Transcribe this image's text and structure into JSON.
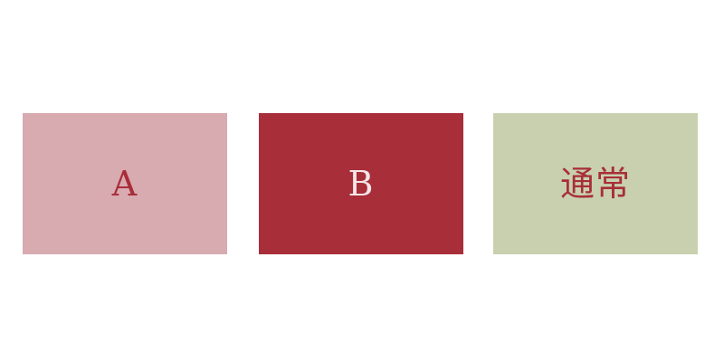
{
  "options": [
    {
      "label": "A",
      "background": "#d8abb0",
      "text_color": "#a82e39"
    },
    {
      "label": "B",
      "background": "#a82e39",
      "text_color": "#f4e6e8"
    },
    {
      "label": "通常",
      "background": "#c8d0b0",
      "text_color": "#a82e39"
    }
  ]
}
